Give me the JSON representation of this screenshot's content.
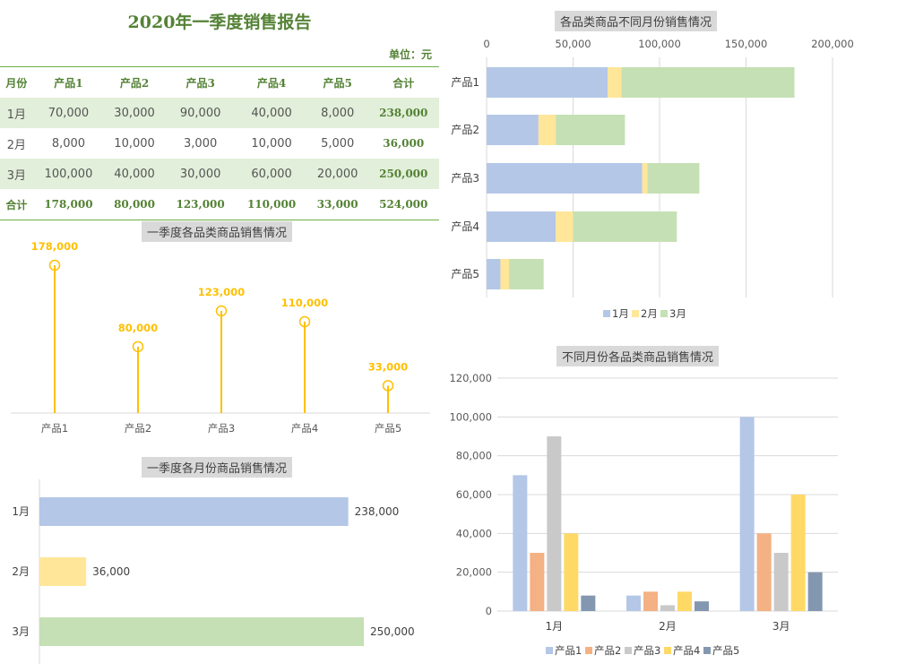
{
  "report": {
    "title": "2020年一季度销售报告",
    "unit": "单位：元",
    "headers": [
      "月份",
      "产品1",
      "产品2",
      "产品3",
      "产品4",
      "产品5",
      "合计"
    ],
    "rows": [
      {
        "month": "1月",
        "values": [
          "70,000",
          "30,000",
          "90,000",
          "40,000",
          "8,000"
        ],
        "total": "238,000"
      },
      {
        "month": "2月",
        "values": [
          "8,000",
          "10,000",
          "3,000",
          "10,000",
          "5,000"
        ],
        "total": "36,000"
      },
      {
        "month": "3月",
        "values": [
          "100,000",
          "40,000",
          "30,000",
          "60,000",
          "20,000"
        ],
        "total": "250,000"
      }
    ],
    "total_row": {
      "label": "合计",
      "values": [
        "178,000",
        "80,000",
        "123,000",
        "110,000",
        "33,000"
      ],
      "total": "524,000"
    }
  },
  "colors": {
    "green_text": "#548235",
    "row_shade": "#e2efda",
    "jan": "#b4c7e7",
    "feb": "#ffe699",
    "mar": "#c5e0b4",
    "lollipop": "#ffc000",
    "p1": "#b4c7e7",
    "p2": "#f4b183",
    "p3": "#c9c9c9",
    "p4": "#ffd966",
    "p5": "#8497b0"
  },
  "chart_data": [
    {
      "id": "lollipop",
      "type": "lollipop",
      "title": "一季度各品类商品销售情况",
      "categories": [
        "产品1",
        "产品2",
        "产品3",
        "产品4",
        "产品5"
      ],
      "values": [
        178000,
        80000,
        123000,
        110000,
        33000
      ],
      "value_labels": [
        "178,000",
        "80,000",
        "123,000",
        "110,000",
        "33,000"
      ]
    },
    {
      "id": "month_total",
      "type": "bar",
      "orientation": "horizontal",
      "title": "一季度各月份商品销售情况",
      "categories": [
        "1月",
        "2月",
        "3月"
      ],
      "values": [
        238000,
        36000,
        250000
      ],
      "value_labels": [
        "238,000",
        "36,000",
        "250,000"
      ]
    },
    {
      "id": "stacked",
      "type": "bar",
      "orientation": "horizontal",
      "stacked": true,
      "title": "各品类商品不同月份销售情况",
      "categories": [
        "产品1",
        "产品2",
        "产品3",
        "产品4",
        "产品5"
      ],
      "series": [
        {
          "name": "1月",
          "values": [
            70000,
            30000,
            90000,
            40000,
            8000
          ]
        },
        {
          "name": "2月",
          "values": [
            8000,
            10000,
            3000,
            10000,
            5000
          ]
        },
        {
          "name": "3月",
          "values": [
            100000,
            40000,
            30000,
            60000,
            20000
          ]
        }
      ],
      "xlim": [
        0,
        200000
      ],
      "ticks": [
        "0",
        "50,000",
        "100,000",
        "150,000",
        "200,000"
      ],
      "legend": "bottom"
    },
    {
      "id": "clustered",
      "type": "bar",
      "title": "不同月份各品类商品销售情况",
      "categories": [
        "1月",
        "2月",
        "3月"
      ],
      "series": [
        {
          "name": "产品1",
          "values": [
            70000,
            8000,
            100000
          ]
        },
        {
          "name": "产品2",
          "values": [
            30000,
            10000,
            40000
          ]
        },
        {
          "name": "产品3",
          "values": [
            90000,
            3000,
            30000
          ]
        },
        {
          "name": "产品4",
          "values": [
            40000,
            10000,
            60000
          ]
        },
        {
          "name": "产品5",
          "values": [
            8000,
            5000,
            20000
          ]
        }
      ],
      "ylim": [
        0,
        120000
      ],
      "ticks": [
        "0",
        "20,000",
        "40,000",
        "60,000",
        "80,000",
        "100,000",
        "120,000"
      ],
      "legend": "bottom"
    }
  ]
}
